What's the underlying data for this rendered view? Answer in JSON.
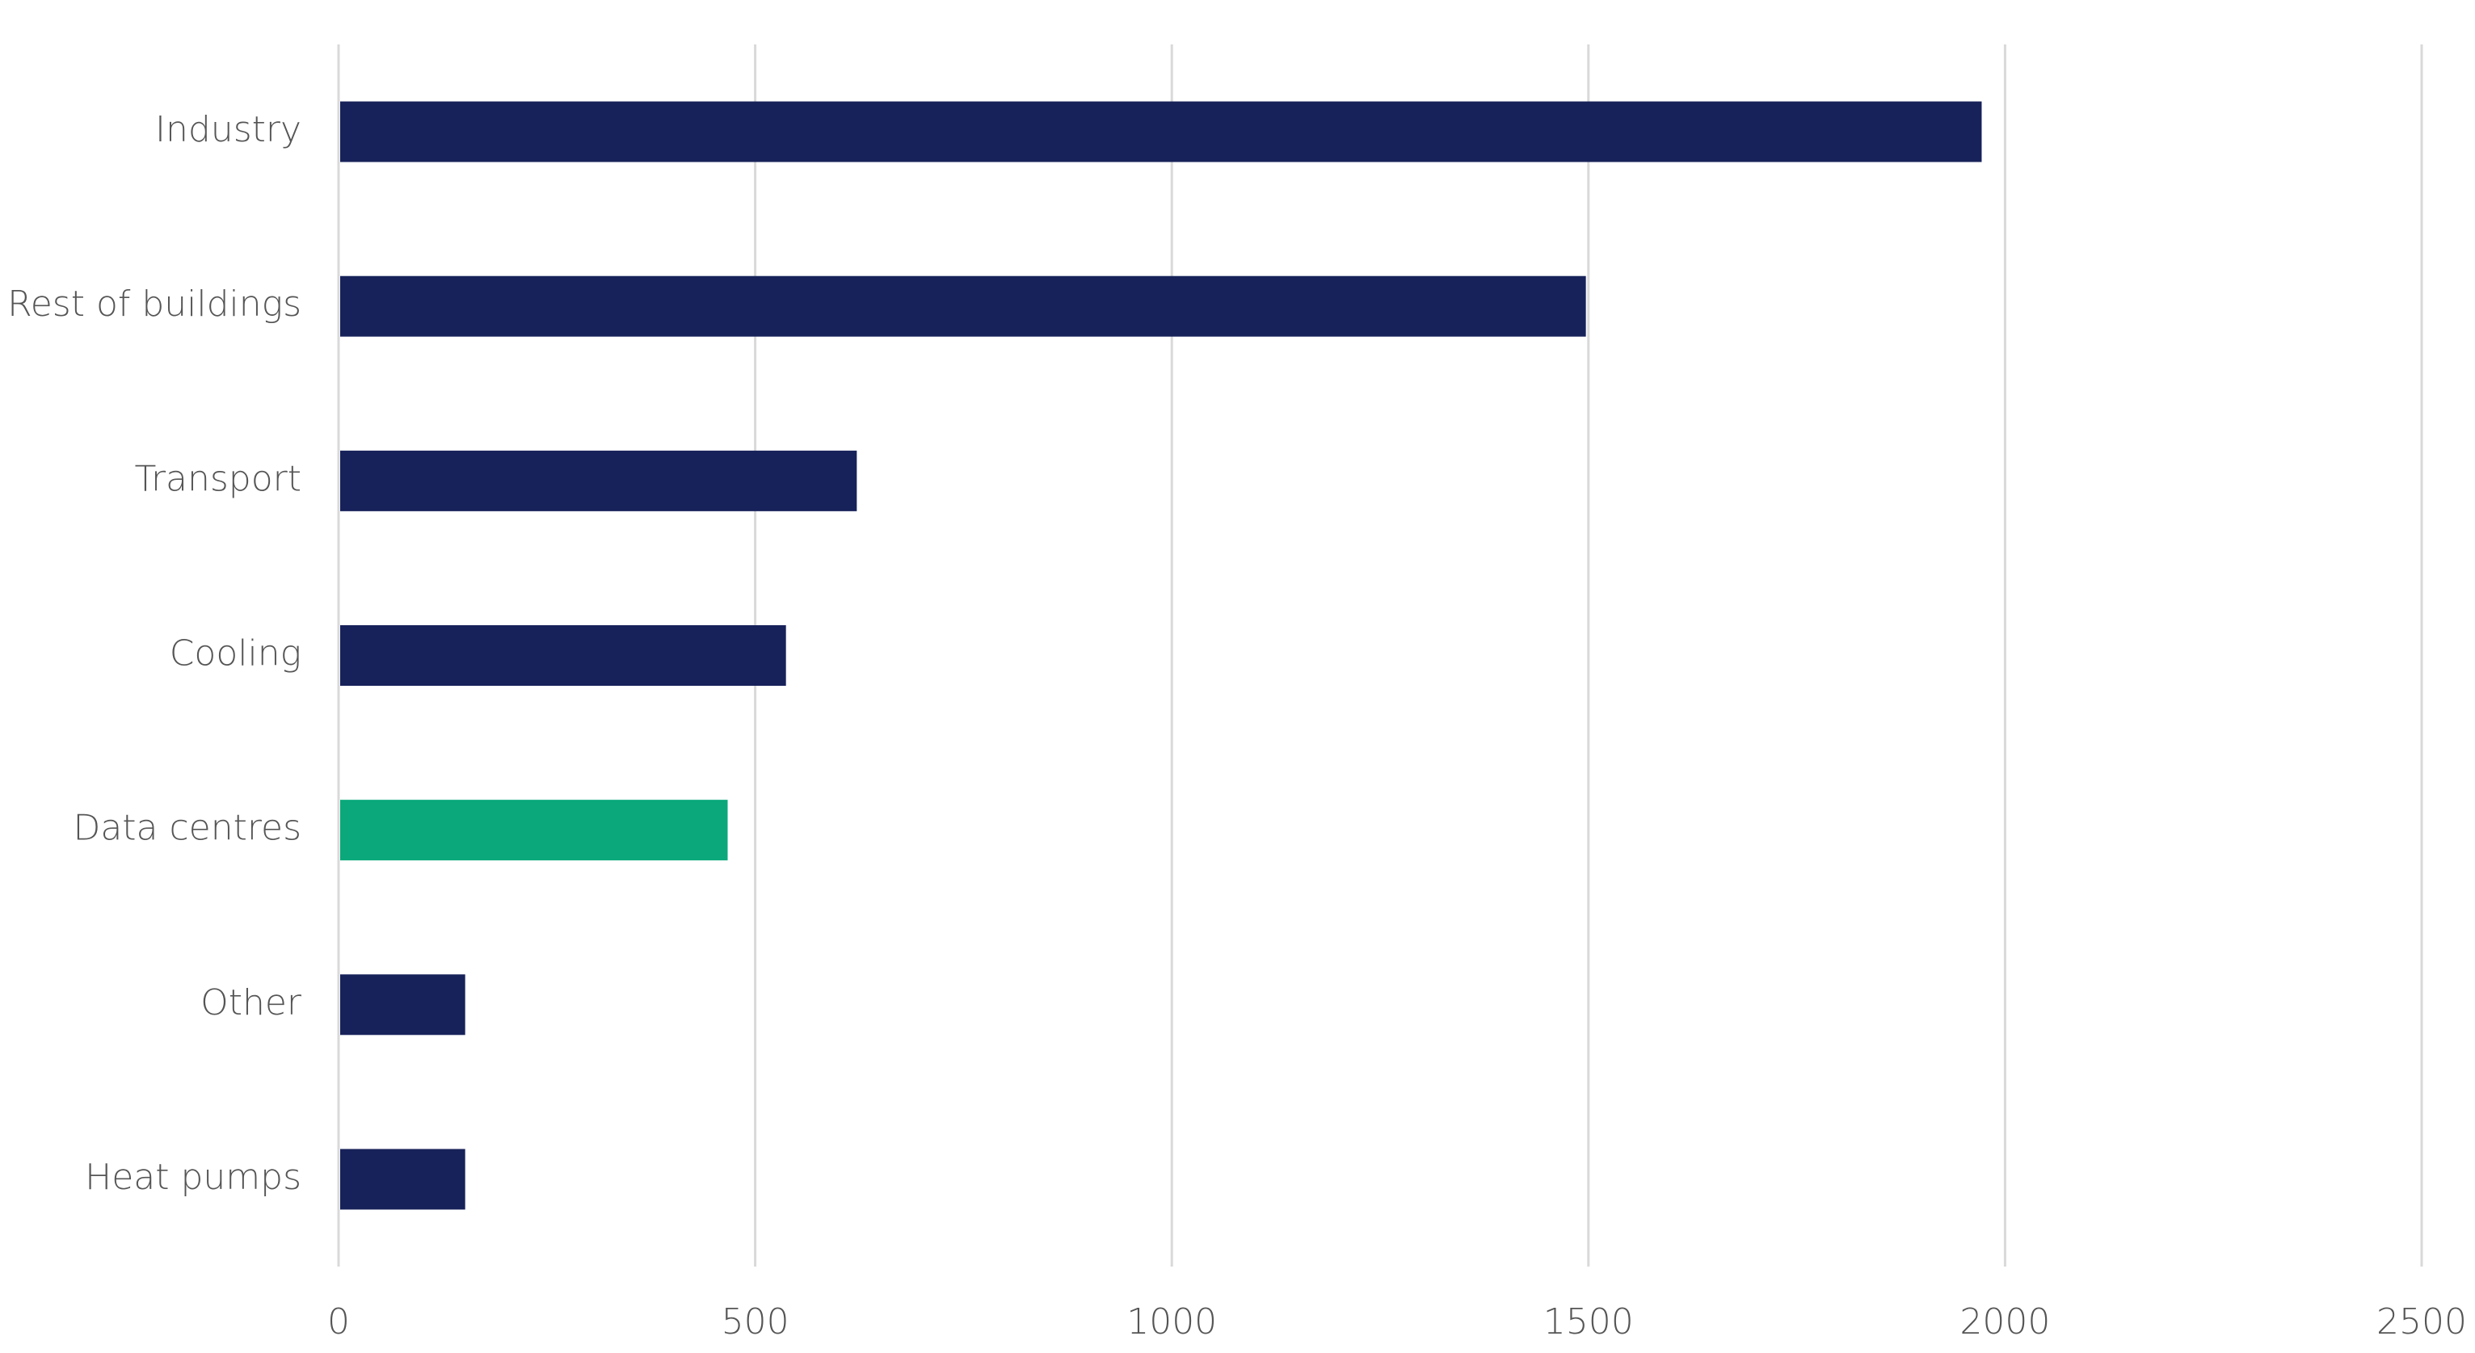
{
  "chart_data": {
    "type": "bar",
    "orientation": "horizontal",
    "categories": [
      "Industry",
      "Rest of buildings",
      "Transport",
      "Cooling",
      "Data centres",
      "Other",
      "Heat pumps"
    ],
    "values": [
      1970,
      1495,
      620,
      535,
      465,
      150,
      150
    ],
    "colors": [
      "#17225a",
      "#17225a",
      "#17225a",
      "#17225a",
      "#0aa87a",
      "#17225a",
      "#17225a"
    ],
    "xlim": [
      0,
      2500
    ],
    "xticks": [
      0,
      500,
      1000,
      1500,
      2000,
      2500
    ],
    "grid": true
  }
}
